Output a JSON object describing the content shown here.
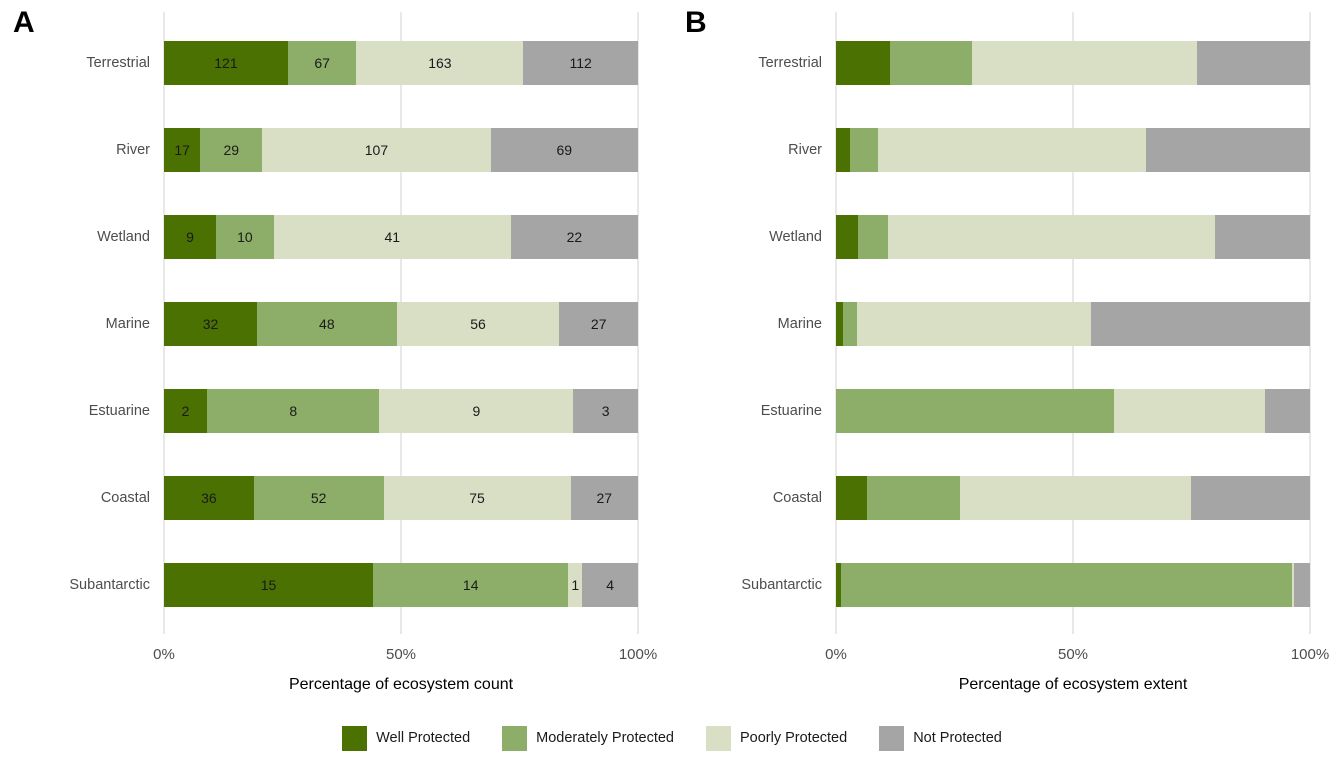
{
  "figure": {
    "background": "#ffffff"
  },
  "panels": [
    {
      "label": "A",
      "xlabel": "Percentage of ecosystem count",
      "x_ticks": [
        "0%",
        "50%",
        "100%"
      ]
    },
    {
      "label": "B",
      "xlabel": "Percentage of ecosystem extent",
      "x_ticks": [
        "0%",
        "50%",
        "100%"
      ]
    }
  ],
  "chart_data": [
    {
      "type": "bar",
      "orientation": "horizontal",
      "stacked": true,
      "panel": "A",
      "xlabel": "Percentage of ecosystem count",
      "x_range": [
        0,
        100
      ],
      "x_ticks": [
        "0%",
        "50%",
        "100%"
      ],
      "grid": "major vertical gridlines at 0%, 50%, 100%",
      "value_labels": true,
      "note": "segment widths are each value divided by the row total (counts normalized to 100%)",
      "categories": [
        "Terrestrial",
        "River",
        "Wetland",
        "Marine",
        "Estuarine",
        "Coastal",
        "Subantarctic"
      ],
      "series": [
        {
          "name": "Well Protected",
          "values": [
            121,
            17,
            9,
            32,
            2,
            36,
            15
          ]
        },
        {
          "name": "Moderately Protected",
          "values": [
            67,
            29,
            10,
            48,
            8,
            52,
            14
          ]
        },
        {
          "name": "Poorly Protected",
          "values": [
            163,
            107,
            41,
            56,
            9,
            75,
            1
          ]
        },
        {
          "name": "Not Protected",
          "values": [
            112,
            69,
            22,
            27,
            3,
            27,
            4
          ]
        }
      ]
    },
    {
      "type": "bar",
      "orientation": "horizontal",
      "stacked": true,
      "panel": "B",
      "xlabel": "Percentage of ecosystem extent",
      "x_range": [
        0,
        100
      ],
      "x_ticks": [
        "0%",
        "50%",
        "100%"
      ],
      "grid": "major vertical gridlines at 0%, 50%, 100%",
      "value_labels": false,
      "note": "values are percentages of ecosystem extent, estimated from bar lengths",
      "categories": [
        "Terrestrial",
        "River",
        "Wetland",
        "Marine",
        "Estuarine",
        "Coastal",
        "Subantarctic"
      ],
      "series": [
        {
          "name": "Well Protected",
          "values": [
            11.3,
            2.9,
            4.6,
            1.4,
            0,
            6.5,
            1.1
          ]
        },
        {
          "name": "Moderately Protected",
          "values": [
            17.4,
            6.0,
            6.4,
            3.1,
            58.7,
            19.7,
            95.1
          ]
        },
        {
          "name": "Poorly Protected",
          "values": [
            47.5,
            56.5,
            68.9,
            49.2,
            31.9,
            48.8,
            0.5
          ]
        },
        {
          "name": "Not Protected",
          "values": [
            23.8,
            34.6,
            20.1,
            46.3,
            9.4,
            25.0,
            3.3
          ]
        }
      ]
    }
  ],
  "legend": {
    "position": "bottom-center",
    "items": [
      {
        "label": "Well Protected",
        "color": "#4b7103"
      },
      {
        "label": "Moderately Protected",
        "color": "#8cae68"
      },
      {
        "label": "Poorly Protected",
        "color": "#d9dfc5"
      },
      {
        "label": "Not Protected",
        "color": "#a5a5a5"
      }
    ]
  },
  "colors": {
    "gridline": "#e8e8e8",
    "axis_text": "#4d4d4d",
    "category_label": "#4d4d4d",
    "value_label": "#1a1a1a",
    "axis_title": "#000000",
    "panel_letter": "#000000"
  }
}
